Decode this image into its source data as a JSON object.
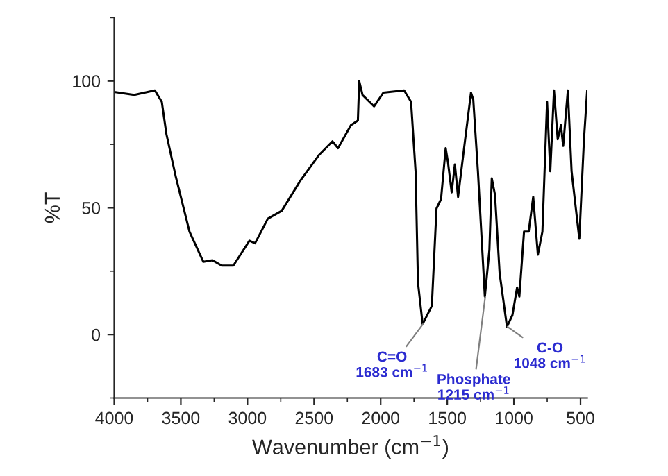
{
  "chart_data": {
    "type": "line",
    "xlabel": "Wavenumber (cm$^{−1}$)",
    "ylabel": "%T",
    "xlim": [
      4000,
      450
    ],
    "xticks": [
      4000,
      3500,
      3000,
      2500,
      2000,
      1500,
      1000,
      500
    ],
    "ylim": [
      -25,
      125
    ],
    "yticks": [
      0,
      50,
      100
    ],
    "grid": false,
    "legend": false,
    "x": [
      4000,
      3850,
      3695,
      3643,
      3608,
      3539,
      3435,
      3331,
      3262,
      3193,
      3106,
      2985,
      2943,
      2847,
      2743,
      2603,
      2465,
      2362,
      2320,
      2223,
      2171,
      2161,
      2136,
      2050,
      1980,
      1824,
      1772,
      1738,
      1720,
      1685,
      1616,
      1581,
      1547,
      1512,
      1495,
      1467,
      1443,
      1419,
      1374,
      1322,
      1305,
      1270,
      1218,
      1184,
      1166,
      1142,
      1107,
      1052,
      1011,
      976,
      959,
      924,
      889,
      855,
      820,
      786,
      751,
      727,
      699,
      671,
      647,
      630,
      595,
      567,
      509,
      474,
      450
    ],
    "series": [
      {
        "color": "#000000",
        "values": [
          95.7,
          94.5,
          96.3,
          91.8,
          79,
          62.5,
          40.6,
          28.7,
          29.3,
          27.2,
          27.2,
          37,
          36,
          45.7,
          48.8,
          60.7,
          70.7,
          76.2,
          73.5,
          82.6,
          84.4,
          100,
          94.5,
          90,
          95.4,
          96.3,
          91.8,
          64.4,
          20.5,
          4.1,
          11.3,
          49.7,
          53.4,
          73.5,
          68,
          56.1,
          67.1,
          54.3,
          73.5,
          95.4,
          92.7,
          64.4,
          15,
          33.3,
          61.6,
          55.2,
          24.1,
          3.1,
          7.7,
          18.6,
          15,
          40.6,
          40.6,
          54.3,
          31.5,
          40.6,
          91.8,
          64.4,
          96.3,
          77,
          82.6,
          74.4,
          96.3,
          64.4,
          37.8,
          77,
          96.3
        ]
      }
    ],
    "annotations": [
      {
        "text": "C=O\n1683 cm$^{−1}$",
        "x": 1683,
        "y": 4.1
      },
      {
        "text": "Phosphate\n1215 cm$^{−1}$",
        "x": 1215,
        "y": 15
      },
      {
        "text": "C-O\n1048 cm$^{−1}$",
        "x": 1048,
        "y": 3.1
      }
    ]
  }
}
